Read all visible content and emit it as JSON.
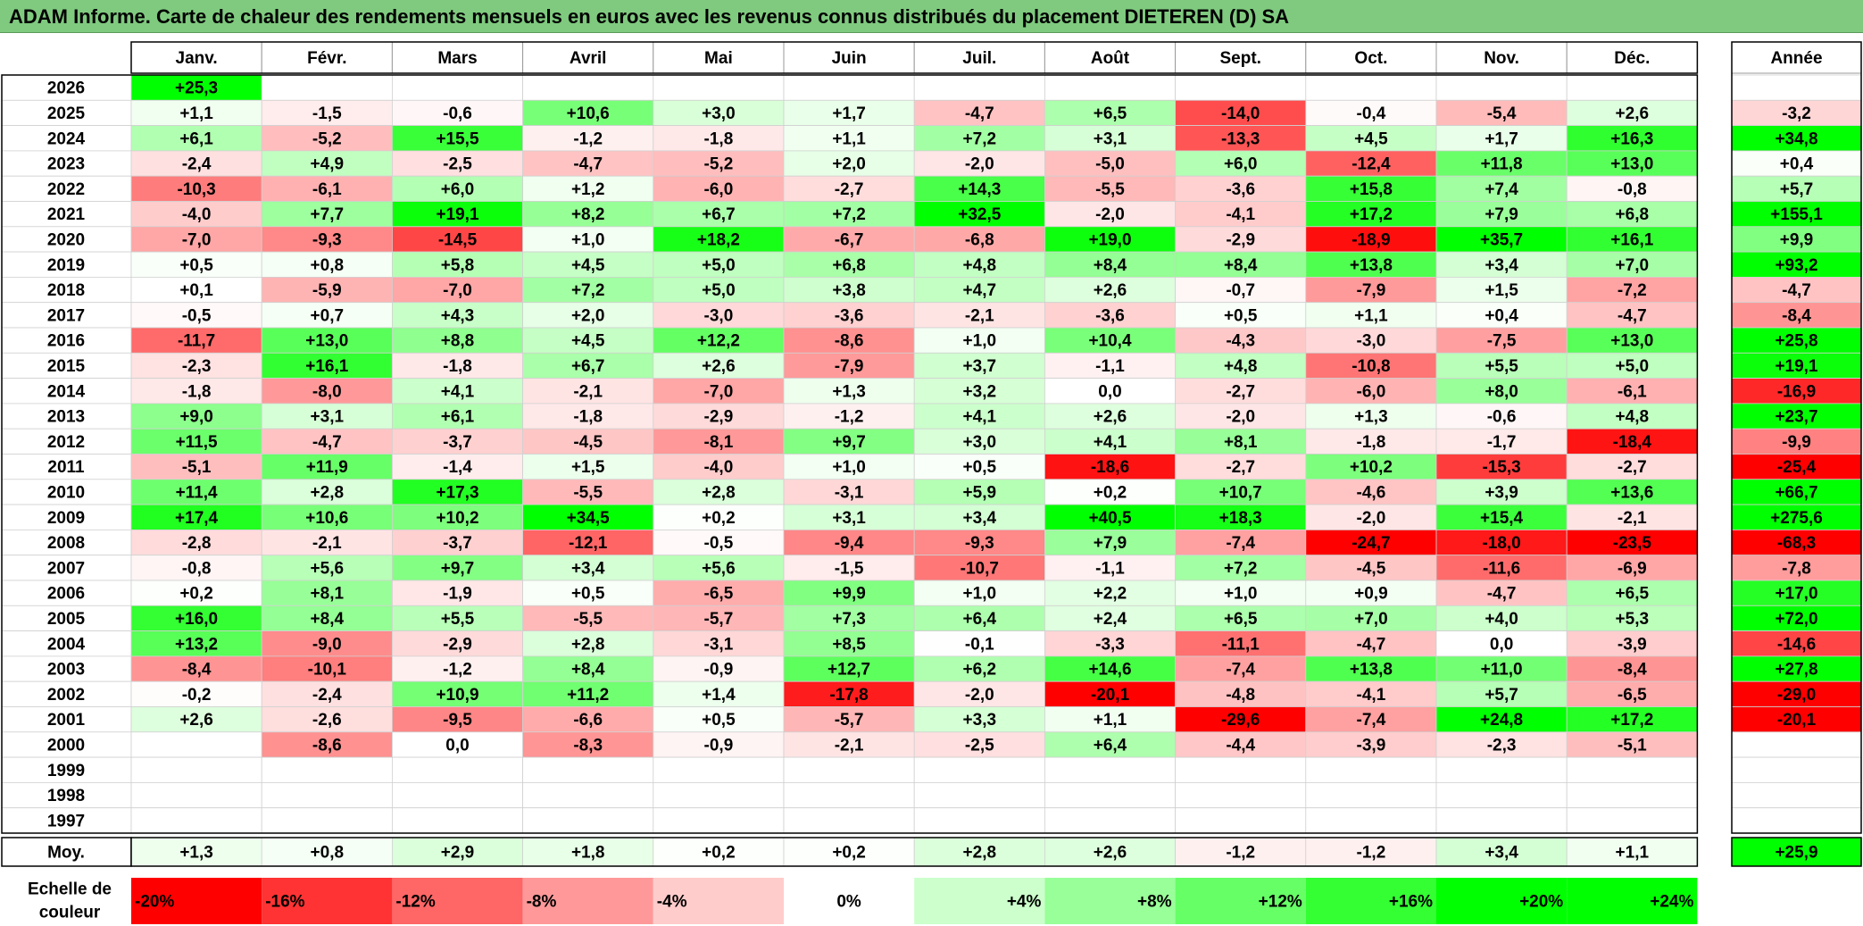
{
  "title": "ADAM Informe. Carte de chaleur des rendements mensuels en euros avec les revenus connus distribués du placement DIETEREN (D) SA",
  "chart_data": {
    "type": "heatmap",
    "title": "ADAM Informe. Carte de chaleur des rendements mensuels en euros avec les revenus connus distribués du placement DIETEREN (D) SA",
    "months": [
      "Janv.",
      "Févr.",
      "Mars",
      "Avril",
      "Mai",
      "Juin",
      "Juil.",
      "Août",
      "Sept.",
      "Oct.",
      "Nov.",
      "Déc."
    ],
    "year_header": "Année",
    "avg_label": "Moy.",
    "scale_label": [
      "Echelle de",
      "couleur"
    ],
    "rows": [
      {
        "year": "2026",
        "values": [
          25.3,
          null,
          null,
          null,
          null,
          null,
          null,
          null,
          null,
          null,
          null,
          null
        ],
        "annual": null
      },
      {
        "year": "2025",
        "values": [
          1.1,
          -1.5,
          -0.6,
          10.6,
          3.0,
          1.7,
          -4.7,
          6.5,
          -14.0,
          -0.4,
          -5.4,
          2.6
        ],
        "annual": -3.2
      },
      {
        "year": "2024",
        "values": [
          6.1,
          -5.2,
          15.5,
          -1.2,
          -1.8,
          1.1,
          7.2,
          3.1,
          -13.3,
          4.5,
          1.7,
          16.3
        ],
        "annual": 34.8
      },
      {
        "year": "2023",
        "values": [
          -2.4,
          4.9,
          -2.5,
          -4.7,
          -5.2,
          2.0,
          -2.0,
          -5.0,
          6.0,
          -12.4,
          11.8,
          13.0
        ],
        "annual": 0.4
      },
      {
        "year": "2022",
        "values": [
          -10.3,
          -6.1,
          6.0,
          1.2,
          -6.0,
          -2.7,
          14.3,
          -5.5,
          -3.6,
          15.8,
          7.4,
          -0.8
        ],
        "annual": 5.7
      },
      {
        "year": "2021",
        "values": [
          -4.0,
          7.7,
          19.1,
          8.2,
          6.7,
          7.2,
          32.5,
          -2.0,
          -4.1,
          17.2,
          7.9,
          6.8
        ],
        "annual": 155.1
      },
      {
        "year": "2020",
        "values": [
          -7.0,
          -9.3,
          -14.5,
          1.0,
          18.2,
          -6.7,
          -6.8,
          19.0,
          -2.9,
          -18.9,
          35.7,
          16.1
        ],
        "annual": 9.9
      },
      {
        "year": "2019",
        "values": [
          0.5,
          0.8,
          5.8,
          4.5,
          5.0,
          6.8,
          4.8,
          8.4,
          8.4,
          13.8,
          3.4,
          7.0
        ],
        "annual": 93.2
      },
      {
        "year": "2018",
        "values": [
          0.1,
          -5.9,
          -7.0,
          7.2,
          5.0,
          3.8,
          4.7,
          2.6,
          -0.7,
          -7.9,
          1.5,
          -7.2
        ],
        "annual": -4.7
      },
      {
        "year": "2017",
        "values": [
          -0.5,
          0.7,
          4.3,
          2.0,
          -3.0,
          -3.6,
          -2.1,
          -3.6,
          0.5,
          1.1,
          0.4,
          -4.7
        ],
        "annual": -8.4
      },
      {
        "year": "2016",
        "values": [
          -11.7,
          13.0,
          8.8,
          4.5,
          12.2,
          -8.6,
          1.0,
          10.4,
          -4.3,
          -3.0,
          -7.5,
          13.0
        ],
        "annual": 25.8
      },
      {
        "year": "2015",
        "values": [
          -2.3,
          16.1,
          -1.8,
          6.7,
          2.6,
          -7.9,
          3.7,
          -1.1,
          4.8,
          -10.8,
          5.5,
          5.0
        ],
        "annual": 19.1
      },
      {
        "year": "2014",
        "values": [
          -1.8,
          -8.0,
          4.1,
          -2.1,
          -7.0,
          1.3,
          3.2,
          0.0,
          -2.7,
          -6.0,
          8.0,
          -6.1
        ],
        "annual": -16.9
      },
      {
        "year": "2013",
        "values": [
          9.0,
          3.1,
          6.1,
          -1.8,
          -2.9,
          -1.2,
          4.1,
          2.6,
          -2.0,
          1.3,
          -0.6,
          4.8
        ],
        "annual": 23.7
      },
      {
        "year": "2012",
        "values": [
          11.5,
          -4.7,
          -3.7,
          -4.5,
          -8.1,
          9.7,
          3.0,
          4.1,
          8.1,
          -1.8,
          -1.7,
          -18.4
        ],
        "annual": -9.9
      },
      {
        "year": "2011",
        "values": [
          -5.1,
          11.9,
          -1.4,
          1.5,
          -4.0,
          1.0,
          0.5,
          -18.6,
          -2.7,
          10.2,
          -15.3,
          -2.7
        ],
        "annual": -25.4
      },
      {
        "year": "2010",
        "values": [
          11.4,
          2.8,
          17.3,
          -5.5,
          2.8,
          -3.1,
          5.9,
          0.2,
          10.7,
          -4.6,
          3.9,
          13.6
        ],
        "annual": 66.7
      },
      {
        "year": "2009",
        "values": [
          17.4,
          10.6,
          10.2,
          34.5,
          0.2,
          3.1,
          3.4,
          40.5,
          18.3,
          -2.0,
          15.4,
          -2.1
        ],
        "annual": 275.6
      },
      {
        "year": "2008",
        "values": [
          -2.8,
          -2.1,
          -3.7,
          -12.1,
          -0.5,
          -9.4,
          -9.3,
          7.9,
          -7.4,
          -24.7,
          -18.0,
          -23.5
        ],
        "annual": -68.3
      },
      {
        "year": "2007",
        "values": [
          -0.8,
          5.6,
          9.7,
          3.4,
          5.6,
          -1.5,
          -10.7,
          -1.1,
          7.2,
          -4.5,
          -11.6,
          -6.9
        ],
        "annual": -7.8
      },
      {
        "year": "2006",
        "values": [
          0.2,
          8.1,
          -1.9,
          0.5,
          -6.5,
          9.9,
          1.0,
          2.2,
          1.0,
          0.9,
          -4.7,
          6.5
        ],
        "annual": 17.0
      },
      {
        "year": "2005",
        "values": [
          16.0,
          8.4,
          5.5,
          -5.5,
          -5.7,
          7.3,
          6.4,
          2.4,
          6.5,
          7.0,
          4.0,
          5.3
        ],
        "annual": 72.0
      },
      {
        "year": "2004",
        "values": [
          13.2,
          -9.0,
          -2.9,
          2.8,
          -3.1,
          8.5,
          -0.1,
          -3.3,
          -11.1,
          -4.7,
          0.0,
          -3.9
        ],
        "annual": -14.6
      },
      {
        "year": "2003",
        "values": [
          -8.4,
          -10.1,
          -1.2,
          8.4,
          -0.9,
          12.7,
          6.2,
          14.6,
          -7.4,
          13.8,
          11.0,
          -8.4
        ],
        "annual": 27.8
      },
      {
        "year": "2002",
        "values": [
          -0.2,
          -2.4,
          10.9,
          11.2,
          1.4,
          -17.8,
          -2.0,
          -20.1,
          -4.8,
          -4.1,
          5.7,
          -6.5
        ],
        "annual": -29.0
      },
      {
        "year": "2001",
        "values": [
          2.6,
          -2.6,
          -9.5,
          -6.6,
          0.5,
          -5.7,
          3.3,
          1.1,
          -29.6,
          -7.4,
          24.8,
          17.2
        ],
        "annual": -20.1
      },
      {
        "year": "2000",
        "values": [
          null,
          -8.6,
          0.0,
          -8.3,
          -0.9,
          -2.1,
          -2.5,
          6.4,
          -4.4,
          -3.9,
          -2.3,
          -5.1
        ],
        "annual": null
      },
      {
        "year": "1999",
        "values": [
          null,
          null,
          null,
          null,
          null,
          null,
          null,
          null,
          null,
          null,
          null,
          null
        ],
        "annual": null
      },
      {
        "year": "1998",
        "values": [
          null,
          null,
          null,
          null,
          null,
          null,
          null,
          null,
          null,
          null,
          null,
          null
        ],
        "annual": null
      },
      {
        "year": "1997",
        "values": [
          null,
          null,
          null,
          null,
          null,
          null,
          null,
          null,
          null,
          null,
          null,
          null
        ],
        "annual": null
      }
    ],
    "average": {
      "values": [
        1.3,
        0.8,
        2.9,
        1.8,
        0.2,
        0.2,
        2.8,
        2.6,
        -1.2,
        -1.2,
        3.4,
        1.1
      ],
      "annual": 25.9
    },
    "scale": [
      {
        "label": "-20%",
        "value": -20
      },
      {
        "label": "-16%",
        "value": -16
      },
      {
        "label": "-12%",
        "value": -12
      },
      {
        "label": "-8%",
        "value": -8
      },
      {
        "label": "-4%",
        "value": -4
      },
      {
        "label": "0%",
        "value": 0
      },
      {
        "label": "+4%",
        "value": 4
      },
      {
        "label": "+8%",
        "value": 8
      },
      {
        "label": "+12%",
        "value": 12
      },
      {
        "label": "+16%",
        "value": 16
      },
      {
        "label": "+20%",
        "value": 20
      },
      {
        "label": "+24%",
        "value": 24
      }
    ],
    "colors": {
      "negative_max": "#ff0000",
      "neutral": "#ffffff",
      "positive_max": "#00ff00",
      "title_bar": "#7fca7f"
    }
  }
}
